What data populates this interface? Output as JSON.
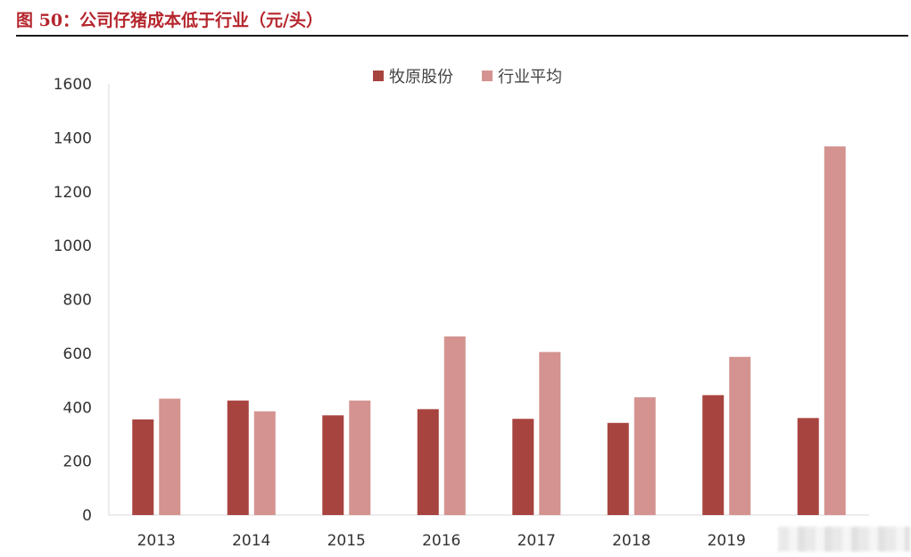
{
  "header": {
    "title": "图 50：公司仔猪成本低于行业（元/头）"
  },
  "colors": {
    "title": "#b5262d",
    "series_1": "#a8443f",
    "series_2": "#d49390",
    "axis": "#d9d9d9"
  },
  "chart_data": {
    "type": "bar",
    "title": "",
    "xlabel": "",
    "ylabel": "",
    "categories": [
      "2013",
      "2014",
      "2015",
      "2016",
      "2017",
      "2018",
      "2019",
      ""
    ],
    "series": [
      {
        "name": "牧原股份",
        "values": [
          355,
          425,
          370,
          393,
          357,
          342,
          445,
          360
        ]
      },
      {
        "name": "行业平均",
        "values": [
          432,
          385,
          425,
          663,
          605,
          437,
          587,
          1368
        ]
      }
    ],
    "ylim": [
      0,
      1600
    ],
    "yticks": [
      0,
      200,
      400,
      600,
      800,
      1000,
      1200,
      1400,
      1600
    ],
    "grid": false,
    "legend": "top-center"
  }
}
